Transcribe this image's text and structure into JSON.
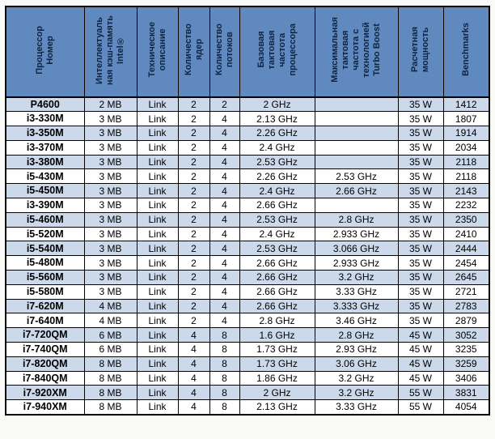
{
  "page": {
    "background": "#fafaf8"
  },
  "colors": {
    "page_bg": "#fafaf8",
    "header_bg": "#6089c0",
    "header_text": "#0f2440",
    "row_shaded": "#ccd9ea",
    "row_plain": "#ffffff",
    "grid": "#000000"
  },
  "chart_data": {
    "type": "table",
    "title": "",
    "legend_position": "none",
    "columns": [
      {
        "name": "processor-number",
        "label": "Процессор\nНомер"
      },
      {
        "name": "intel-smart-cache",
        "label": "Интеллектуаль\nная кэш-память\nIntel®"
      },
      {
        "name": "technical-description",
        "label": "Техническое\nописание"
      },
      {
        "name": "core-count",
        "label": "Количество\nядер"
      },
      {
        "name": "thread-count",
        "label": "Количество\nпотоков"
      },
      {
        "name": "base-frequency",
        "label": "Базовая\nтактовая\nчастота\nпроцессора"
      },
      {
        "name": "turbo-boost-frequency",
        "label": "Максимальная\nтактовая\nчастота с\nтехнологией\nTurbo Boost"
      },
      {
        "name": "tdp",
        "label": "Расчетная\nмощность"
      },
      {
        "name": "benchmarks",
        "label": "Benchmarks"
      }
    ],
    "rows": [
      [
        "P4600",
        "2 MB",
        "Link",
        "2",
        "2",
        "2 GHz",
        "",
        "35 W",
        "1412"
      ],
      [
        "i3-330M",
        "3 MB",
        "Link",
        "2",
        "4",
        "2.13 GHz",
        "",
        "35 W",
        "1807"
      ],
      [
        "i3-350M",
        "3 MB",
        "Link",
        "2",
        "4",
        "2.26 GHz",
        "",
        "35 W",
        "1914"
      ],
      [
        "i3-370M",
        "3 MB",
        "Link",
        "2",
        "4",
        "2.4 GHz",
        "",
        "35 W",
        "2034"
      ],
      [
        "i3-380M",
        "3 MB",
        "Link",
        "2",
        "4",
        "2.53 GHz",
        "",
        "35 W",
        "2118"
      ],
      [
        "i5-430M",
        "3 MB",
        "Link",
        "2",
        "4",
        "2.26 GHz",
        "2.53 GHz",
        "35 W",
        "2118"
      ],
      [
        "i5-450M",
        "3 MB",
        "Link",
        "2",
        "4",
        "2.4 GHz",
        "2.66 GHz",
        "35 W",
        "2143"
      ],
      [
        "i3-390M",
        "3 MB",
        "Link",
        "2",
        "4",
        "2.66 GHz",
        "",
        "35 W",
        "2232"
      ],
      [
        "i5-460M",
        "3 MB",
        "Link",
        "2",
        "4",
        "2.53 GHz",
        "2.8 GHz",
        "35 W",
        "2350"
      ],
      [
        "i5-520M",
        "3 MB",
        "Link",
        "2",
        "4",
        "2.4 GHz",
        "2.933 GHz",
        "35 W",
        "2410"
      ],
      [
        "i5-540M",
        "3 MB",
        "Link",
        "2",
        "4",
        "2.53 GHz",
        "3.066 GHz",
        "35 W",
        "2444"
      ],
      [
        "i5-480M",
        "3 MB",
        "Link",
        "2",
        "4",
        "2.66 GHz",
        "2.933 GHz",
        "35 W",
        "2454"
      ],
      [
        "i5-560M",
        "3 MB",
        "Link",
        "2",
        "4",
        "2.66 GHz",
        "3.2 GHz",
        "35 W",
        "2645"
      ],
      [
        "i5-580M",
        "3 MB",
        "Link",
        "2",
        "4",
        "2.66 GHz",
        "3.33 GHz",
        "35 W",
        "2721"
      ],
      [
        "i7-620M",
        "4 MB",
        "Link",
        "2",
        "4",
        "2.66 GHz",
        "3.333 GHz",
        "35 W",
        "2783"
      ],
      [
        "i7-640M",
        "4 MB",
        "Link",
        "2",
        "4",
        "2.8 GHz",
        "3.46 GHz",
        "35 W",
        "2879"
      ],
      [
        "i7-720QM",
        "6 MB",
        "Link",
        "4",
        "8",
        "1.6 GHz",
        "2.8 GHz",
        "45 W",
        "3052"
      ],
      [
        "i7-740QM",
        "6 MB",
        "Link",
        "4",
        "8",
        "1.73 GHz",
        "2.93 GHz",
        "45 W",
        "3235"
      ],
      [
        "i7-820QM",
        "8 MB",
        "Link",
        "4",
        "8",
        "1.73 GHz",
        "3.06 GHz",
        "45 W",
        "3259"
      ],
      [
        "i7-840QM",
        "8 MB",
        "Link",
        "4",
        "8",
        "1.86 GHz",
        "3.2 GHz",
        "45 W",
        "3406"
      ],
      [
        "i7-920XM",
        "8 MB",
        "Link",
        "4",
        "8",
        "2 GHz",
        "3.2 GHz",
        "55 W",
        "3831"
      ],
      [
        "i7-940XM",
        "8 MB",
        "Link",
        "4",
        "8",
        "2.13 GHz",
        "3.33 GHz",
        "55 W",
        "4054"
      ]
    ]
  }
}
